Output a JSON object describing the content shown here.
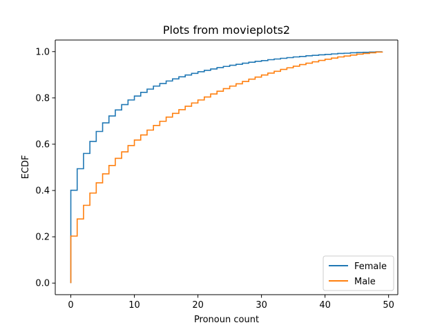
{
  "chart_data": {
    "type": "line",
    "drawstyle": "steps-post",
    "title": "Plots from movieplots2",
    "xlabel": "Pronoun count",
    "ylabel": "ECDF",
    "xlim": [
      -2.45,
      51.45
    ],
    "ylim": [
      -0.05,
      1.05
    ],
    "xticks": [
      0,
      10,
      20,
      30,
      40,
      50
    ],
    "xtick_labels": [
      "0",
      "10",
      "20",
      "30",
      "40",
      "50"
    ],
    "yticks": [
      0.0,
      0.2,
      0.4,
      0.6,
      0.8,
      1.0
    ],
    "ytick_labels": [
      "0.0",
      "0.2",
      "0.4",
      "0.6",
      "0.8",
      "1.0"
    ],
    "grid": false,
    "legend_position": "lower-right",
    "series": [
      {
        "name": "Female",
        "color": "#1f77b4",
        "x": [
          0,
          1,
          2,
          3,
          4,
          5,
          6,
          7,
          8,
          9,
          10,
          11,
          12,
          13,
          14,
          15,
          16,
          17,
          18,
          19,
          20,
          21,
          22,
          23,
          24,
          25,
          26,
          27,
          28,
          29,
          30,
          31,
          32,
          33,
          34,
          35,
          36,
          37,
          38,
          39,
          40,
          41,
          42,
          43,
          44,
          45,
          46,
          47,
          48,
          49
        ],
        "y": [
          0.401,
          0.494,
          0.56,
          0.612,
          0.655,
          0.692,
          0.722,
          0.748,
          0.771,
          0.791,
          0.808,
          0.824,
          0.838,
          0.851,
          0.862,
          0.873,
          0.882,
          0.891,
          0.899,
          0.906,
          0.913,
          0.919,
          0.925,
          0.931,
          0.936,
          0.941,
          0.945,
          0.95,
          0.954,
          0.958,
          0.961,
          0.965,
          0.968,
          0.971,
          0.974,
          0.977,
          0.979,
          0.982,
          0.984,
          0.986,
          0.988,
          0.99,
          0.992,
          0.993,
          0.995,
          0.996,
          0.997,
          0.998,
          0.999,
          1.0
        ]
      },
      {
        "name": "Male",
        "color": "#ff7f0e",
        "x": [
          0,
          1,
          2,
          3,
          4,
          5,
          6,
          7,
          8,
          9,
          10,
          11,
          12,
          13,
          14,
          15,
          16,
          17,
          18,
          19,
          20,
          21,
          22,
          23,
          24,
          25,
          26,
          27,
          28,
          29,
          30,
          31,
          32,
          33,
          34,
          35,
          36,
          37,
          38,
          39,
          40,
          41,
          42,
          43,
          44,
          45,
          46,
          47,
          48,
          49
        ],
        "y": [
          0.203,
          0.277,
          0.336,
          0.389,
          0.433,
          0.472,
          0.508,
          0.539,
          0.567,
          0.594,
          0.618,
          0.64,
          0.661,
          0.681,
          0.699,
          0.717,
          0.733,
          0.749,
          0.764,
          0.778,
          0.791,
          0.804,
          0.817,
          0.829,
          0.84,
          0.851,
          0.861,
          0.871,
          0.881,
          0.89,
          0.899,
          0.907,
          0.915,
          0.923,
          0.93,
          0.937,
          0.944,
          0.95,
          0.956,
          0.962,
          0.967,
          0.972,
          0.977,
          0.981,
          0.985,
          0.989,
          0.992,
          0.995,
          0.998,
          1.0
        ]
      }
    ]
  }
}
